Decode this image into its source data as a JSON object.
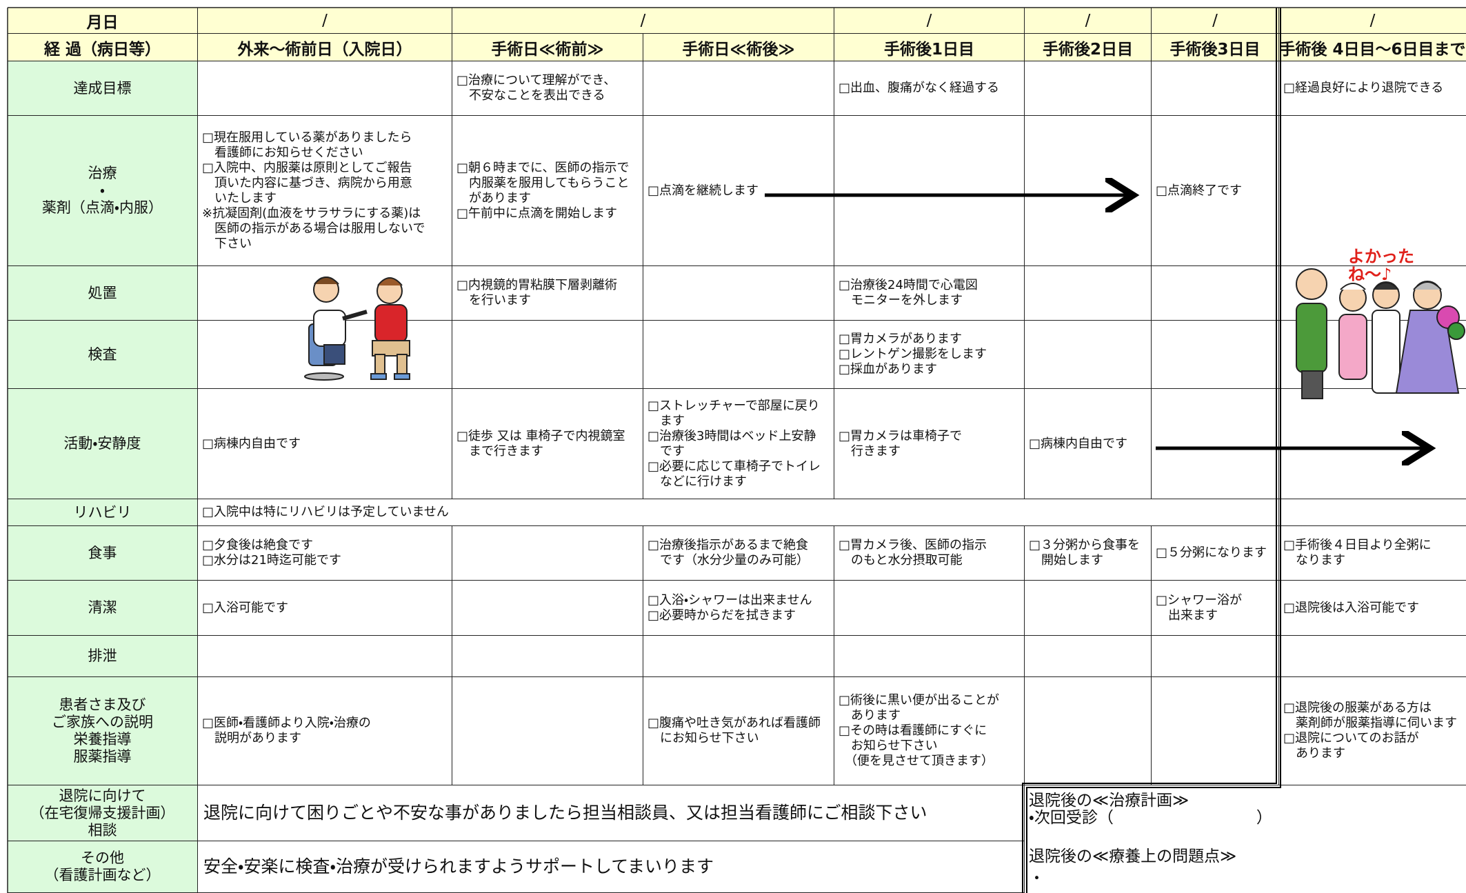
{
  "header": {
    "date_label": "月日",
    "dates": [
      "/",
      "/",
      "/",
      "/",
      "/",
      "/"
    ],
    "progress_label": "経 過（病日等）",
    "stages": [
      "外来～術前日（入院日）",
      "手術日≪術前≫",
      "手術日≪術後≫",
      "手術後1日目",
      "手術後2日目",
      "手術後3日目",
      "手術後 4日目～6日目まで"
    ]
  },
  "rows": [
    {
      "label": "達成目標",
      "cells": [
        null,
        "□治療について理解ができ、\n　不安なことを表出できる",
        null,
        "□出血、腹痛がなく経過する",
        null,
        null,
        "□経過良好により退院できる"
      ]
    },
    {
      "label": "治療\n・\n薬剤（点滴・内服）",
      "cells": [
        "□現在服用している薬がありましたら\n　看護師にお知らせください\n□入院中、内服薬は原則としてご報告\n　頂いた内容に基づき、病院から用意\n　いたします\n※抗凝固剤(血液をサラサラにする薬)は\n　医師の指示がある場合は服用しないで\n　下さい",
        "□朝６時までに、医師の指示で\n　内服薬を服用してもらうこと\n　があります\n□午前中に点滴を開始します",
        "□点滴を継続します",
        null,
        null,
        "□点滴終了です",
        null
      ]
    },
    {
      "label": "処置",
      "cells": [
        null,
        "□内視鏡的胃粘膜下層剥離術\n　を行います",
        null,
        "□治療後24時間で心電図\n　モニターを外します",
        null,
        null,
        null
      ]
    },
    {
      "label": "検査",
      "cells": [
        null,
        null,
        null,
        "□胃カメラがあります\n□レントゲン撮影をします\n□採血があります",
        null,
        null,
        null
      ]
    },
    {
      "label": "活動・安静度",
      "cells": [
        "□病棟内自由です",
        "□徒歩 又は 車椅子で内視鏡室\n　まで行きます",
        "□ストレッチャーで部屋に戻り\n　ます\n□治療後3時間はベッド上安静\n　です\n□必要に応じて車椅子でトイレ\n　などに行けます",
        "□胃カメラは車椅子で\n　行きます",
        "□病棟内自由です",
        null,
        null
      ]
    },
    {
      "label": "リハビリ",
      "merged_text": "□入院中は特にリハビリは予定していません"
    },
    {
      "label": "食事",
      "cells": [
        "□夕食後は絶食です\n□水分は21時迄可能です",
        null,
        "□治療後指示があるまで絶食\n　です（水分少量のみ可能）",
        "□胃カメラ後、医師の指示\n　のもと水分摂取可能",
        "□３分粥から食事を\n　開始します",
        "□５分粥になります",
        "□手術後４日目より全粥に\n　なります"
      ]
    },
    {
      "label": "清潔",
      "cells": [
        "□入浴可能です",
        null,
        "□入浴・シャワーは出来ません\n□必要時からだを拭きます",
        null,
        null,
        "□シャワー浴が\n　出来ます",
        "□退院後は入浴可能です"
      ]
    },
    {
      "label": "排泄",
      "cells": [
        null,
        null,
        null,
        null,
        null,
        null,
        null
      ]
    },
    {
      "label": "患者さま及び\nご家族への説明\n栄養指導\n服薬指導",
      "cells": [
        "□医師・看護師より入院・治療の\n　説明があります",
        null,
        "□腹痛や吐き気があれば看護師\n　にお知らせ下さい",
        "□術後に黒い便が出ることが\n　あります\n□その時は看護師にすぐに\n　お知らせ下さい\n　（便を見させて頂きます）",
        null,
        null,
        "□退院後の服薬がある方は\n　薬剤師が服薬指導に伺います\n□退院についてのお話が\n　あります"
      ]
    }
  ],
  "footer_rows": [
    {
      "label": "退院に向けて\n（在宅復帰支援計画）\n相談",
      "text": "退院に向けて困りごとや不安な事がありましたら担当相談員、又は担当看護師にご相談下さい"
    },
    {
      "label": "その他\n（看護計画など）",
      "text": "安全・安楽に検査・治療が受けられますようサポートしてまいります"
    }
  ],
  "discharge_box": {
    "plan_title": "退院後の≪治療計画≫",
    "next_visit": "・次回受診（　　　　　　　　　）",
    "issues_title": "退院後の≪療養上の問題点≫",
    "issues_item": "・"
  },
  "illustration_caption": "よかった\nね〜♪"
}
